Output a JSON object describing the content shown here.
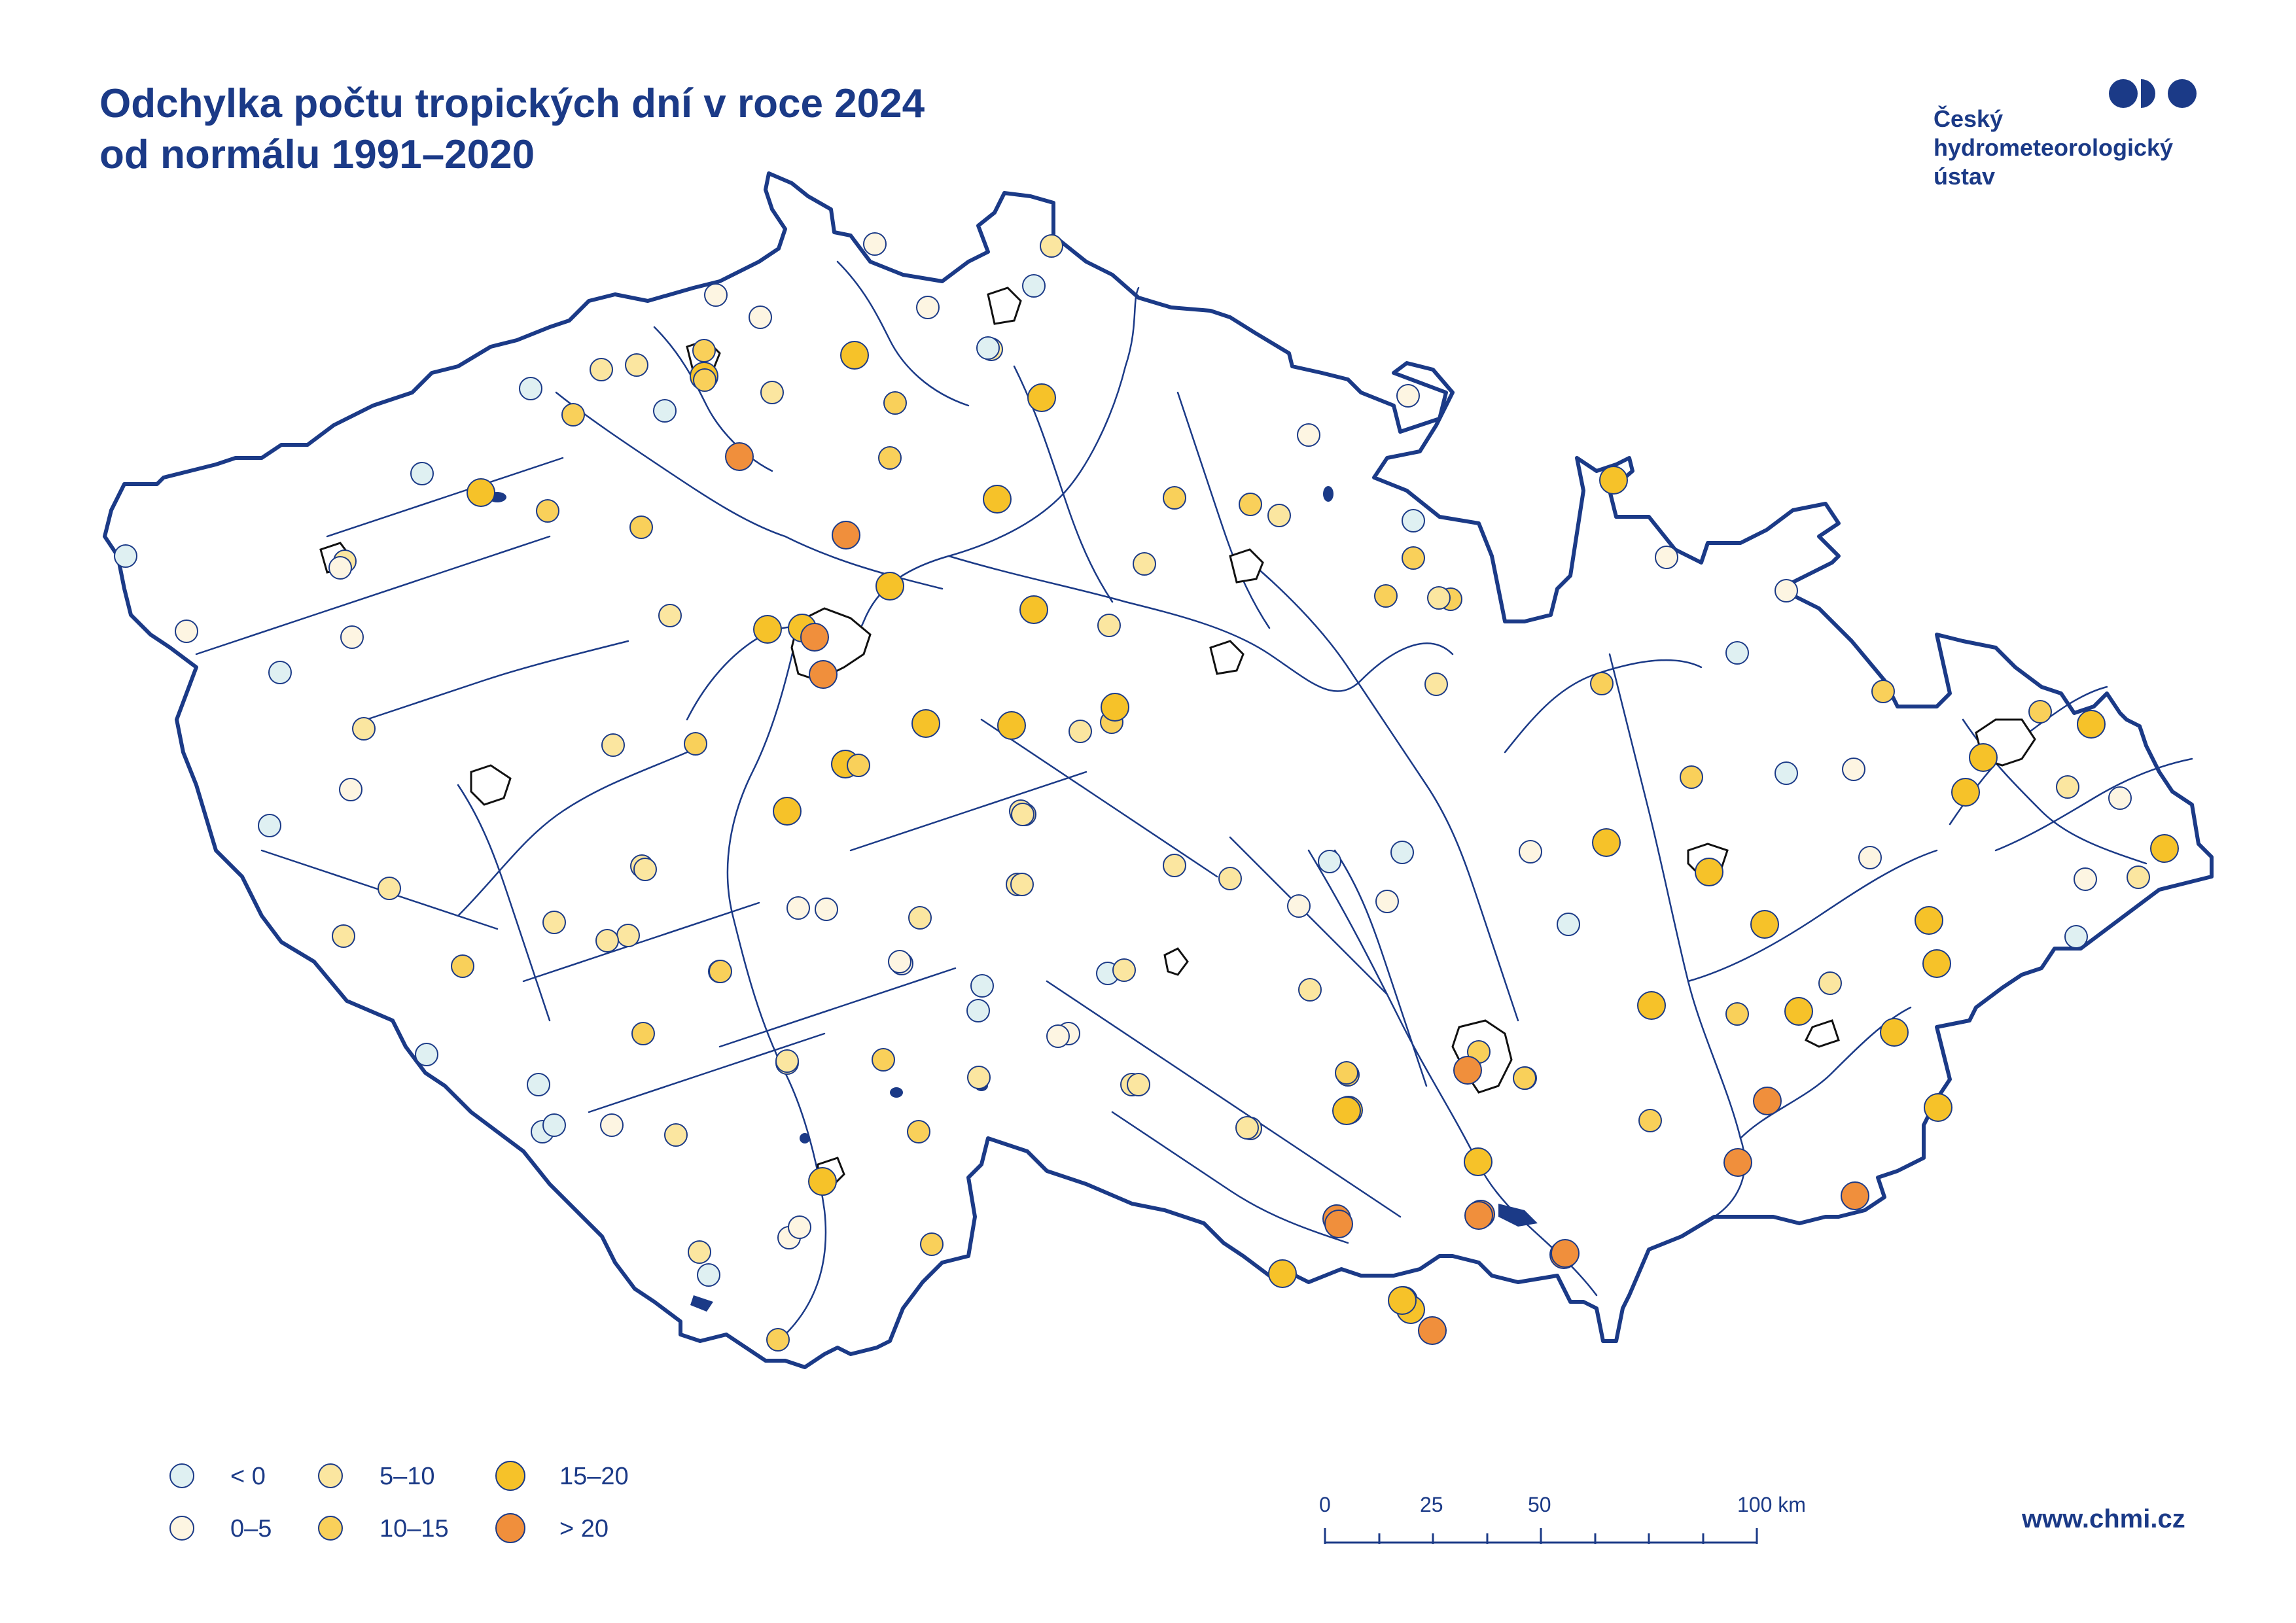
{
  "title": {
    "line1": "Odchylka počtu tropických dní v roce 2024",
    "line2": "od normálu 1991–2020"
  },
  "logo": {
    "line1": "Český",
    "line2": "hydrometeorologický",
    "line3": "ústav",
    "icon": "chmi-logo-icon"
  },
  "website": "www.chmi.cz",
  "legend": {
    "items": [
      {
        "label": "< 0",
        "color": "#dff0f2"
      },
      {
        "label": "0–5",
        "color": "#fdf5e2"
      },
      {
        "label": "5–10",
        "color": "#fbe6a0"
      },
      {
        "label": "10–15",
        "color": "#f9d05a"
      },
      {
        "label": "15–20",
        "color": "#f6c229"
      },
      {
        "label": "> 20",
        "color": "#f08f3c"
      }
    ]
  },
  "scale": {
    "labels": [
      "0",
      "25",
      "50",
      "100 km"
    ]
  },
  "colors": {
    "border": "#1b3a87",
    "river": "#1b3a87",
    "city": "#111111",
    "point_stroke": "#1b3a87"
  },
  "map_elements": [
    "country-border",
    "rivers",
    "lakes",
    "city-outlines",
    "stations"
  ]
}
